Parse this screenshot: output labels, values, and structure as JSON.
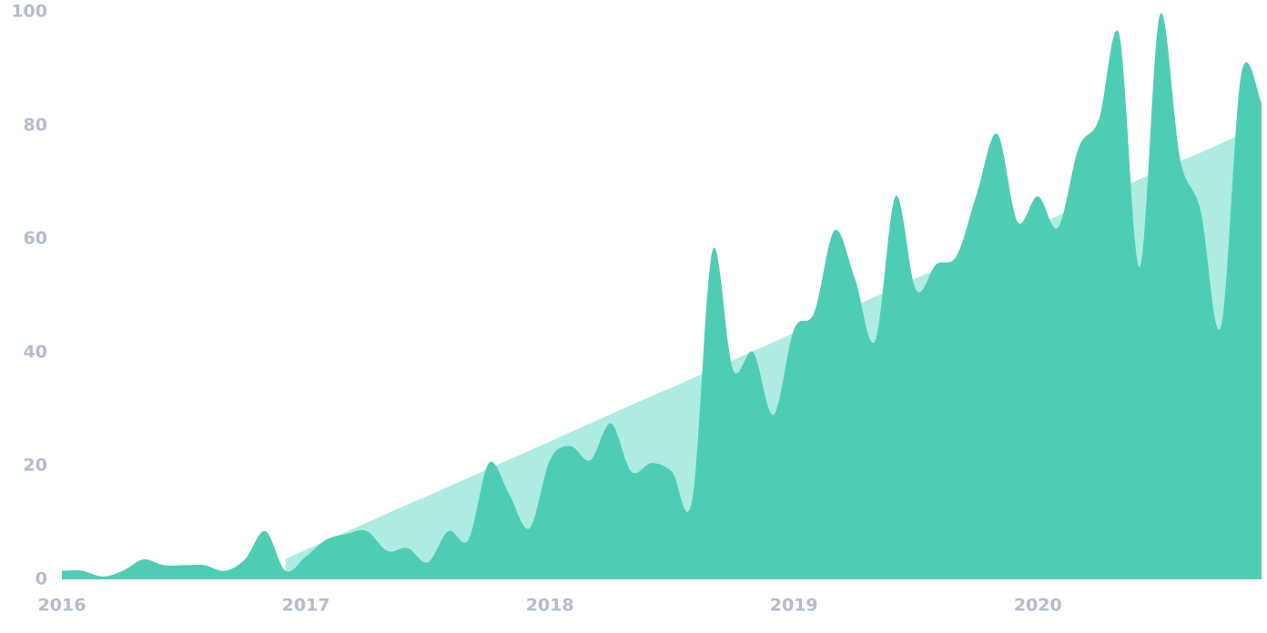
{
  "chart_data": {
    "type": "area",
    "categories": [
      "2016",
      null,
      null,
      null,
      null,
      null,
      null,
      null,
      null,
      null,
      null,
      null,
      "2017",
      null,
      null,
      null,
      null,
      null,
      null,
      null,
      null,
      null,
      null,
      null,
      "2018",
      null,
      null,
      null,
      null,
      null,
      null,
      null,
      null,
      null,
      null,
      null,
      "2019",
      null,
      null,
      null,
      null,
      null,
      null,
      null,
      null,
      null,
      null,
      null,
      "2020",
      null,
      null,
      null,
      null,
      null,
      null,
      null,
      null,
      null,
      null,
      null
    ],
    "series": [
      {
        "color": "#aeece1",
        "smooth": false,
        "values": [
          null,
          null,
          null,
          null,
          null,
          null,
          null,
          null,
          null,
          null,
          null,
          3.6,
          5.2,
          6.8,
          8.4,
          10.0,
          11.6,
          13.2,
          14.7,
          16.3,
          17.9,
          19.5,
          21.1,
          22.7,
          24.3,
          25.9,
          27.5,
          29.1,
          30.7,
          32.3,
          33.8,
          35.4,
          37.0,
          38.6,
          40.2,
          41.8,
          43.4,
          45.0,
          46.6,
          48.2,
          49.8,
          51.4,
          53.0,
          54.6,
          56.1,
          57.7,
          59.3,
          60.9,
          62.5,
          64.1,
          65.7,
          67.3,
          68.9,
          70.5,
          72.1,
          73.7,
          75.2,
          76.8,
          78.4,
          80.0
        ]
      },
      {
        "color": "#4ecdb4",
        "smooth": true,
        "values": [
          1.5,
          1.5,
          0.5,
          1.5,
          3.5,
          2.5,
          2.5,
          2.5,
          1.5,
          3.5,
          8.5,
          1.5,
          4,
          7,
          8,
          8.5,
          5,
          5.5,
          3,
          8.5,
          7,
          20.5,
          15,
          9,
          21,
          23.5,
          21,
          27.5,
          19,
          20.5,
          19,
          14,
          58,
          37,
          40,
          29,
          44,
          47,
          61.5,
          53,
          42,
          67.5,
          51,
          55.5,
          57,
          68,
          78.5,
          63,
          67.5,
          62,
          76,
          81,
          96,
          55,
          99.5,
          74,
          65,
          44.5,
          89,
          84
        ]
      }
    ],
    "ylim": [
      0,
      100
    ],
    "yticks": [
      0,
      20,
      40,
      60,
      80,
      100
    ],
    "grid": false
  }
}
